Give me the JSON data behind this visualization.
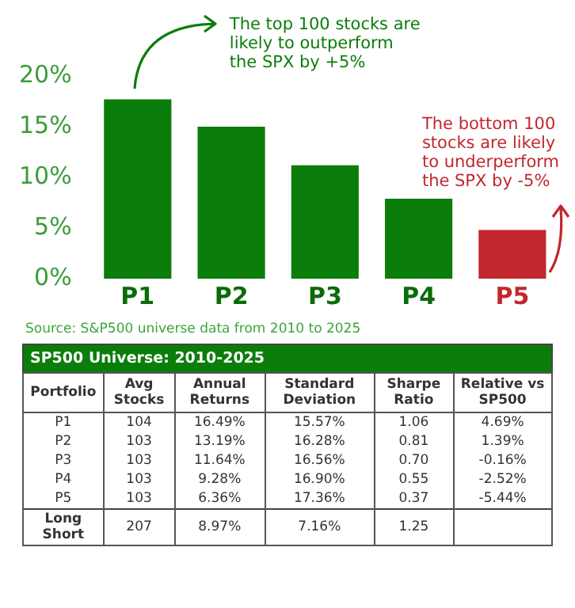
{
  "chart_data": [
    {
      "type": "bar",
      "categories": [
        "P1",
        "P2",
        "P3",
        "P4",
        "P5"
      ],
      "values": [
        17.7,
        15.0,
        11.2,
        7.9,
        4.8
      ],
      "colors": [
        "#0b7d0b",
        "#0b7d0b",
        "#0b7d0b",
        "#0b7d0b",
        "#c1272d"
      ],
      "ylim": [
        0,
        20
      ],
      "yticks": [
        {
          "value": 0,
          "label": "0%"
        },
        {
          "value": 5,
          "label": "5%"
        },
        {
          "value": 10,
          "label": "10%"
        },
        {
          "value": 15,
          "label": "15%"
        },
        {
          "value": 20,
          "label": "20%"
        }
      ],
      "grid": false,
      "legend": false,
      "annotations": [
        {
          "text": "The top 100 stocks are\nlikely to outperform\nthe SPX by +5%",
          "x": "P1",
          "y": 17.7
        },
        {
          "text": "The bottom 100\nstocks are likely\nto underperform\nthe SPX by -5%",
          "x": "P5",
          "y": 4.8
        },
        "Source: S&P500 universe data from 2010 to 2025"
      ]
    },
    {
      "type": "other",
      "title": "SP500 Universe: 2010-2025",
      "categories": [
        "Portfolio",
        "Avg Stocks",
        "Annual Returns",
        "Standard Deviation",
        "Sharpe Ratio",
        "Relative vs SP500"
      ],
      "y_categories": [
        "P1",
        "P2",
        "P3",
        "P4",
        "P5",
        "Long Short"
      ],
      "annotations": [
        "104",
        "16.49%",
        "15.57%",
        "1.06",
        "4.69%",
        "103",
        "13.19%",
        "16.28%",
        "0.81",
        "1.39%",
        "103",
        "11.64%",
        "16.56%",
        "0.70",
        "-0.16%",
        "103",
        "9.28%",
        "16.90%",
        "0.55",
        "-2.52%",
        "103",
        "6.36%",
        "17.36%",
        "0.37",
        "-5.44%",
        "207",
        "8.97%",
        "7.16%",
        "1.25"
      ]
    }
  ]
}
